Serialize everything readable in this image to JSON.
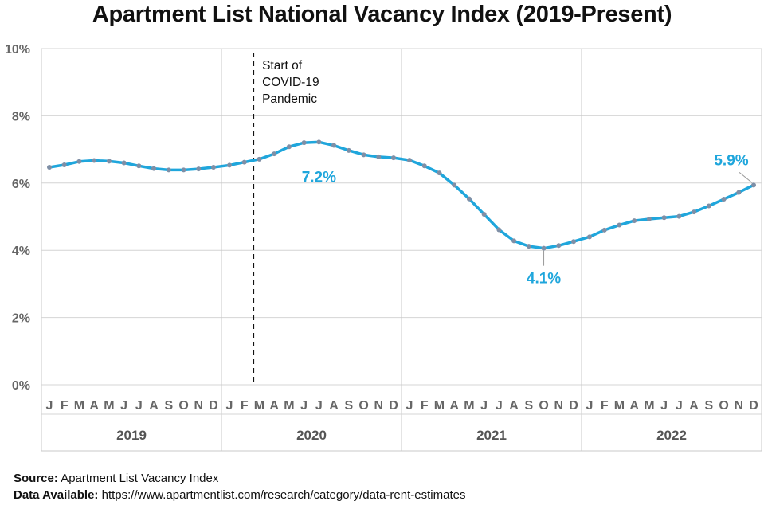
{
  "title": "Apartment List National Vacancy Index (2019-Present)",
  "chart_data": {
    "type": "line",
    "title": "Apartment List National Vacancy Index (2019-Present)",
    "ylim": [
      0,
      10
    ],
    "y_ticks": [
      "0%",
      "2%",
      "4%",
      "6%",
      "8%",
      "10%"
    ],
    "y_tick_values": [
      0,
      2,
      4,
      6,
      8,
      10
    ],
    "grid": "horizontal and year dividers",
    "month_labels": [
      "J",
      "F",
      "M",
      "A",
      "M",
      "J",
      "J",
      "A",
      "S",
      "O",
      "N",
      "D"
    ],
    "years": [
      "2019",
      "2020",
      "2021",
      "2022"
    ],
    "line_color": "#1fa6dc",
    "marker_color": "#7f8fa6",
    "series": [
      {
        "values": [
          6.47,
          6.54,
          6.64,
          6.67,
          6.65,
          6.6,
          6.51,
          6.43,
          6.39,
          6.39,
          6.42,
          6.47,
          6.53,
          6.62,
          6.71,
          6.87,
          7.08,
          7.2,
          7.22,
          7.12,
          6.97,
          6.84,
          6.78,
          6.75,
          6.68,
          6.51,
          6.3,
          5.94,
          5.53,
          5.07,
          4.61,
          4.28,
          4.12,
          4.06,
          4.14,
          4.26,
          4.4,
          4.6,
          4.75,
          4.88,
          4.93,
          4.97,
          5.01,
          5.14,
          5.32,
          5.52,
          5.72,
          5.94
        ]
      }
    ],
    "annotations": {
      "covid": {
        "label_lines": [
          "Start of",
          "COVID-19",
          "Pandemic"
        ],
        "index": 14
      },
      "peak": {
        "text": "7.2%",
        "index": 18
      },
      "trough": {
        "text": "4.1%",
        "index": 33
      },
      "last": {
        "text": "5.9%",
        "index": 47
      }
    }
  },
  "footer": {
    "source_label": "Source:",
    "source_text": " Apartment List Vacancy Index",
    "data_label": "Data Available:",
    "data_text": " https://www.apartmentlist.com/research/category/data-rent-estimates"
  }
}
